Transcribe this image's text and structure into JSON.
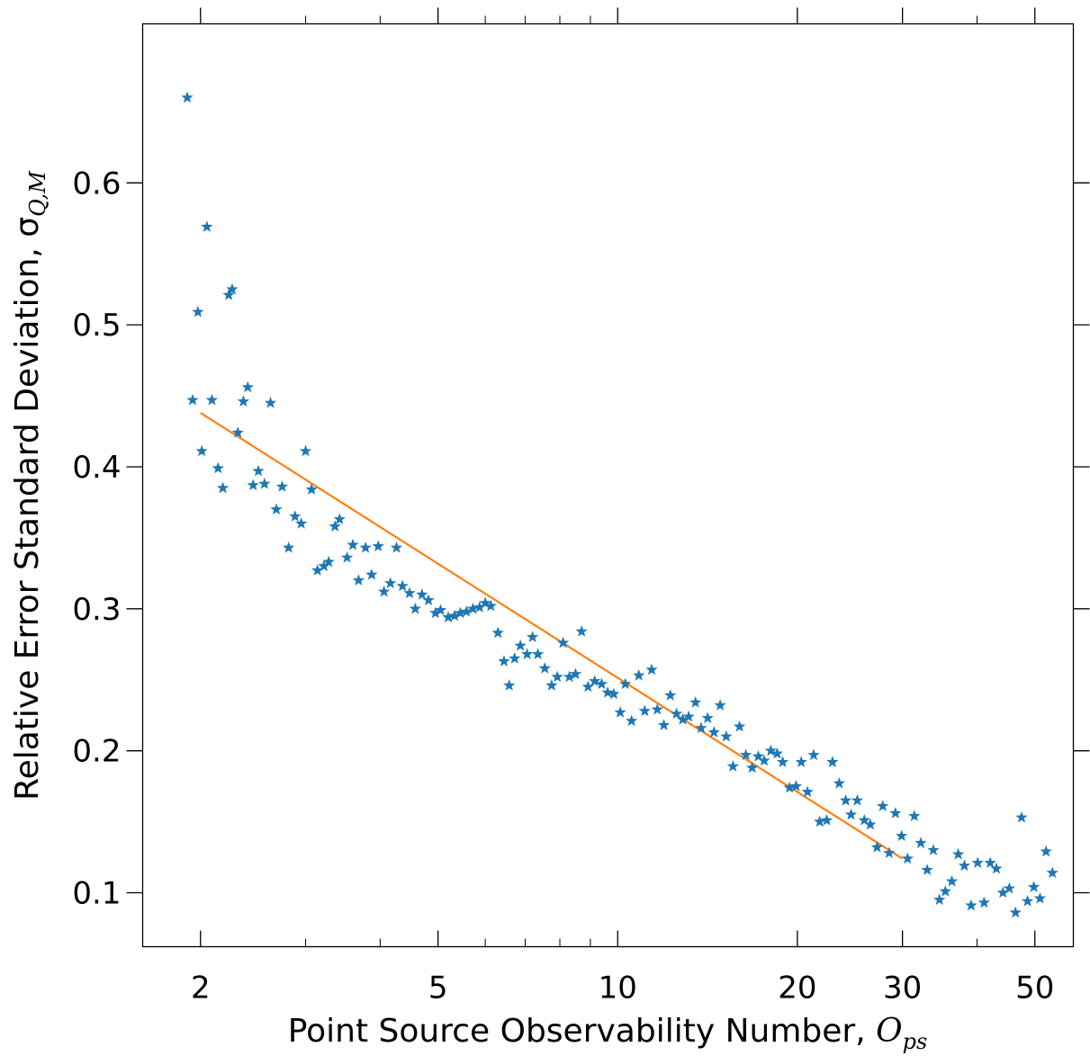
{
  "chart_data": {
    "type": "scatter",
    "xscale": "log",
    "xlim": [
      1.6,
      58
    ],
    "ylim": [
      0.062,
      0.712
    ],
    "xticks_major": [
      2,
      5,
      10,
      20,
      30,
      50
    ],
    "xtick_labels": [
      "2",
      "5",
      "10",
      "20",
      "30",
      "50"
    ],
    "yticks": [
      0.1,
      0.2,
      0.3,
      0.4,
      0.5,
      0.6
    ],
    "ytick_labels": [
      "0.1",
      "0.2",
      "0.3",
      "0.4",
      "0.5",
      "0.6"
    ],
    "xlabel": "Point Source Observability Number,",
    "xlabel_symbol": "O",
    "xlabel_sub": "ps",
    "ylabel": "Relative Error Standard Deviation, σ",
    "ylabel_sub": "Q,M",
    "grid": false,
    "colors": {
      "points": "#1f77b4",
      "fit": "#ff7f0e"
    },
    "series": [
      {
        "type": "scatter",
        "marker": "star",
        "points": [
          [
            1.9,
            0.66
          ],
          [
            1.94,
            0.447
          ],
          [
            1.98,
            0.509
          ],
          [
            2.01,
            0.411
          ],
          [
            2.05,
            0.569
          ],
          [
            2.09,
            0.447
          ],
          [
            2.14,
            0.399
          ],
          [
            2.18,
            0.385
          ],
          [
            2.23,
            0.521
          ],
          [
            2.26,
            0.525
          ],
          [
            2.31,
            0.424
          ],
          [
            2.36,
            0.446
          ],
          [
            2.4,
            0.456
          ],
          [
            2.45,
            0.387
          ],
          [
            2.5,
            0.397
          ],
          [
            2.56,
            0.388
          ],
          [
            2.62,
            0.445
          ],
          [
            2.68,
            0.37
          ],
          [
            2.74,
            0.386
          ],
          [
            2.81,
            0.343
          ],
          [
            2.88,
            0.365
          ],
          [
            2.95,
            0.36
          ],
          [
            3.0,
            0.411
          ],
          [
            3.07,
            0.384
          ],
          [
            3.14,
            0.327
          ],
          [
            3.22,
            0.33
          ],
          [
            3.28,
            0.333
          ],
          [
            3.36,
            0.358
          ],
          [
            3.42,
            0.363
          ],
          [
            3.52,
            0.336
          ],
          [
            3.6,
            0.345
          ],
          [
            3.68,
            0.32
          ],
          [
            3.78,
            0.343
          ],
          [
            3.87,
            0.324
          ],
          [
            3.97,
            0.344
          ],
          [
            4.06,
            0.312
          ],
          [
            4.16,
            0.318
          ],
          [
            4.26,
            0.343
          ],
          [
            4.36,
            0.316
          ],
          [
            4.48,
            0.311
          ],
          [
            4.58,
            0.3
          ],
          [
            4.7,
            0.31
          ],
          [
            4.82,
            0.306
          ],
          [
            4.95,
            0.297
          ],
          [
            5.05,
            0.299
          ],
          [
            5.2,
            0.294
          ],
          [
            5.33,
            0.295
          ],
          [
            5.45,
            0.297
          ],
          [
            5.58,
            0.298
          ],
          [
            5.72,
            0.3
          ],
          [
            5.87,
            0.301
          ],
          [
            6.0,
            0.304
          ],
          [
            6.13,
            0.302
          ],
          [
            6.3,
            0.283
          ],
          [
            6.45,
            0.263
          ],
          [
            6.58,
            0.246
          ],
          [
            6.72,
            0.265
          ],
          [
            6.87,
            0.274
          ],
          [
            7.05,
            0.268
          ],
          [
            7.2,
            0.28
          ],
          [
            7.35,
            0.268
          ],
          [
            7.55,
            0.258
          ],
          [
            7.75,
            0.246
          ],
          [
            7.92,
            0.252
          ],
          [
            8.1,
            0.276
          ],
          [
            8.3,
            0.252
          ],
          [
            8.5,
            0.254
          ],
          [
            8.7,
            0.284
          ],
          [
            8.92,
            0.245
          ],
          [
            9.15,
            0.249
          ],
          [
            9.4,
            0.247
          ],
          [
            9.62,
            0.241
          ],
          [
            9.85,
            0.24
          ],
          [
            10.1,
            0.227
          ],
          [
            10.3,
            0.247
          ],
          [
            10.55,
            0.221
          ],
          [
            10.85,
            0.253
          ],
          [
            11.1,
            0.228
          ],
          [
            11.4,
            0.257
          ],
          [
            11.65,
            0.229
          ],
          [
            11.95,
            0.218
          ],
          [
            12.25,
            0.239
          ],
          [
            12.55,
            0.226
          ],
          [
            12.85,
            0.222
          ],
          [
            13.15,
            0.224
          ],
          [
            13.5,
            0.234
          ],
          [
            13.8,
            0.216
          ],
          [
            14.15,
            0.223
          ],
          [
            14.5,
            0.213
          ],
          [
            14.85,
            0.232
          ],
          [
            15.2,
            0.21
          ],
          [
            15.6,
            0.189
          ],
          [
            16.0,
            0.217
          ],
          [
            16.4,
            0.197
          ],
          [
            16.8,
            0.188
          ],
          [
            17.2,
            0.196
          ],
          [
            17.6,
            0.193
          ],
          [
            18.05,
            0.2
          ],
          [
            18.5,
            0.198
          ],
          [
            18.9,
            0.192
          ],
          [
            19.4,
            0.174
          ],
          [
            19.9,
            0.175
          ],
          [
            20.3,
            0.192
          ],
          [
            20.8,
            0.171
          ],
          [
            21.3,
            0.197
          ],
          [
            21.8,
            0.15
          ],
          [
            22.4,
            0.151
          ],
          [
            22.9,
            0.192
          ],
          [
            23.5,
            0.177
          ],
          [
            24.1,
            0.165
          ],
          [
            24.6,
            0.155
          ],
          [
            25.2,
            0.165
          ],
          [
            25.9,
            0.151
          ],
          [
            26.5,
            0.148
          ],
          [
            27.2,
            0.132
          ],
          [
            27.8,
            0.161
          ],
          [
            28.5,
            0.128
          ],
          [
            29.2,
            0.156
          ],
          [
            29.9,
            0.14
          ],
          [
            30.6,
            0.124
          ],
          [
            31.4,
            0.154
          ],
          [
            32.2,
            0.135
          ],
          [
            33.0,
            0.116
          ],
          [
            33.8,
            0.13
          ],
          [
            34.6,
            0.095
          ],
          [
            35.4,
            0.101
          ],
          [
            36.3,
            0.108
          ],
          [
            37.2,
            0.127
          ],
          [
            38.1,
            0.119
          ],
          [
            39.1,
            0.091
          ],
          [
            40.1,
            0.121
          ],
          [
            41.1,
            0.093
          ],
          [
            42.1,
            0.121
          ],
          [
            43.1,
            0.117
          ],
          [
            44.2,
            0.1
          ],
          [
            45.3,
            0.103
          ],
          [
            46.4,
            0.086
          ],
          [
            47.5,
            0.153
          ],
          [
            48.6,
            0.094
          ],
          [
            49.8,
            0.104
          ],
          [
            51.0,
            0.096
          ],
          [
            52.2,
            0.129
          ],
          [
            53.5,
            0.114
          ]
        ]
      },
      {
        "type": "line",
        "points": [
          [
            2.0,
            0.438
          ],
          [
            30.0,
            0.124
          ]
        ]
      }
    ]
  }
}
